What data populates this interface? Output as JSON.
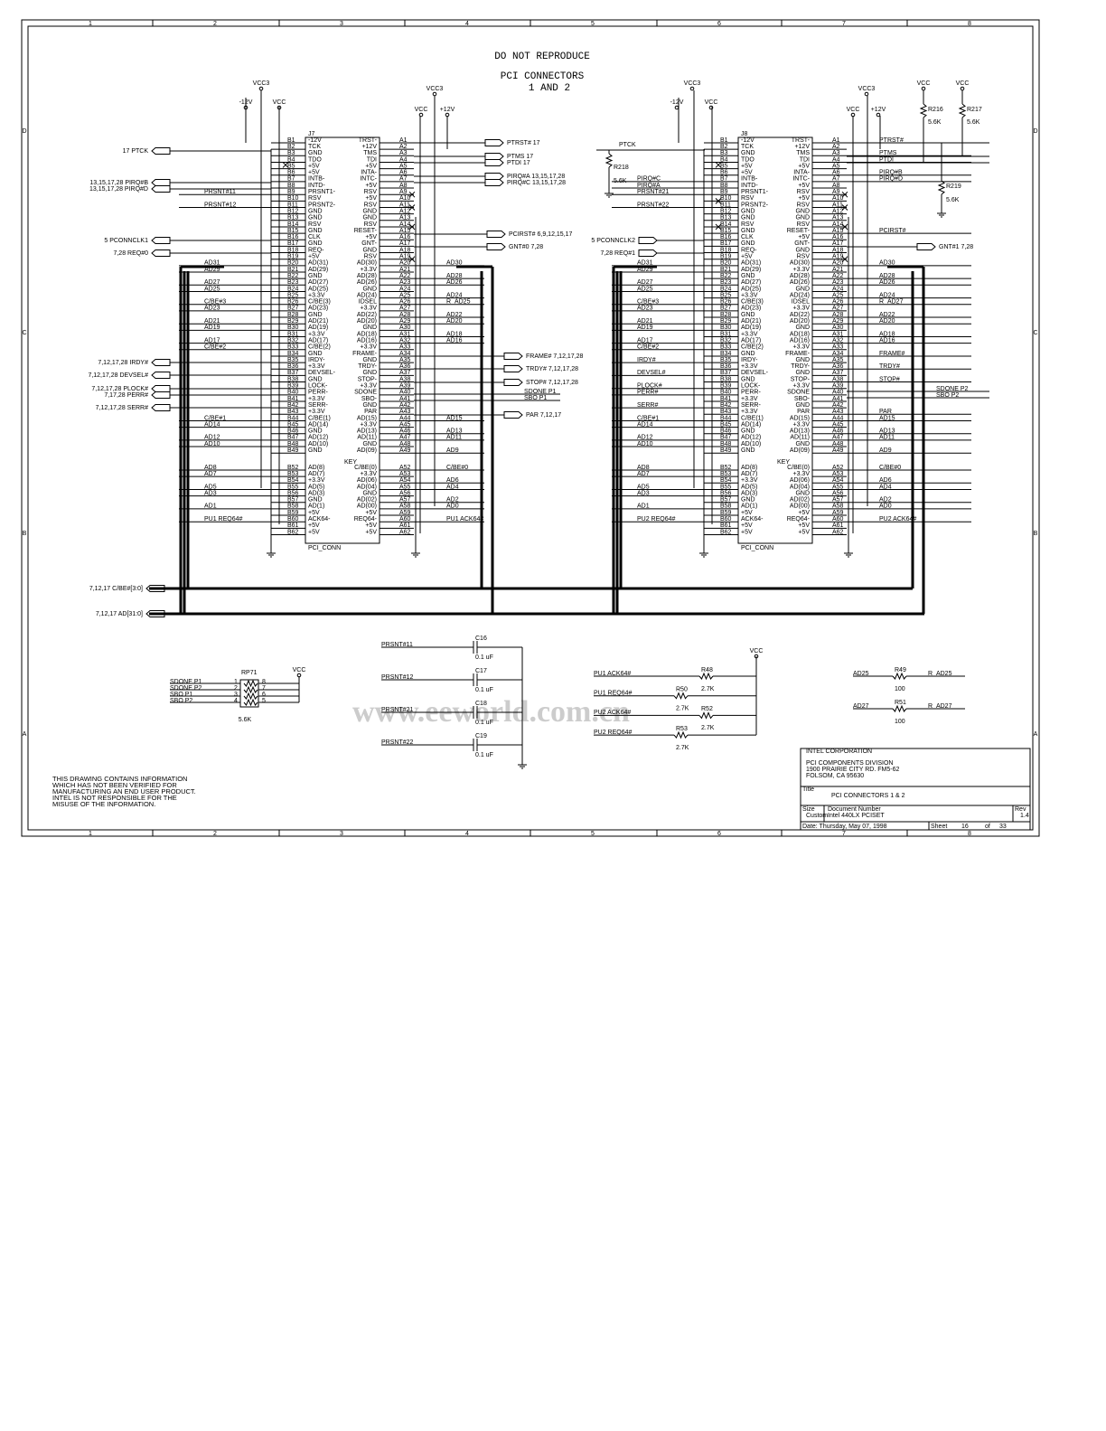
{
  "header": {
    "line1": "DO NOT REPRODUCE",
    "line2": "PCI CONNECTORS",
    "line3": "1 AND 2"
  },
  "border": {
    "columns": [
      "1",
      "2",
      "3",
      "4",
      "5",
      "6",
      "7",
      "8"
    ],
    "rows": [
      "D",
      "C",
      "B",
      "A"
    ]
  },
  "key": "KEY",
  "pin_rows": [
    {
      "b": "B1",
      "bn": "-12V",
      "a": "A1",
      "an": "TRST-"
    },
    {
      "b": "B2",
      "bn": "TCK",
      "a": "A2",
      "an": "+12V"
    },
    {
      "b": "B3",
      "bn": "GND",
      "a": "A3",
      "an": "TMS"
    },
    {
      "b": "B4",
      "bn": "TDO",
      "a": "A4",
      "an": "TDI"
    },
    {
      "b": "B5",
      "bn": "+5V",
      "a": "A5",
      "an": "+5V"
    },
    {
      "b": "B6",
      "bn": "+5V",
      "a": "A6",
      "an": "INTA-"
    },
    {
      "b": "B7",
      "bn": "INTB-",
      "a": "A7",
      "an": "INTC-"
    },
    {
      "b": "B8",
      "bn": "INTD-",
      "a": "A8",
      "an": "+5V"
    },
    {
      "b": "B9",
      "bn": "PRSNT1-",
      "a": "A9",
      "an": "RSV"
    },
    {
      "b": "B10",
      "bn": "RSV",
      "a": "A10",
      "an": "+5V"
    },
    {
      "b": "B11",
      "bn": "PRSNT2-",
      "a": "A11",
      "an": "RSV"
    },
    {
      "b": "B12",
      "bn": "GND",
      "a": "A12",
      "an": "GND"
    },
    {
      "b": "B13",
      "bn": "GND",
      "a": "A13",
      "an": "GND"
    },
    {
      "b": "B14",
      "bn": "RSV",
      "a": "A14",
      "an": "RSV"
    },
    {
      "b": "B15",
      "bn": "GND",
      "a": "A15",
      "an": "RESET-"
    },
    {
      "b": "B16",
      "bn": "CLK",
      "a": "A16",
      "an": "+5V"
    },
    {
      "b": "B17",
      "bn": "GND",
      "a": "A17",
      "an": "GNT-"
    },
    {
      "b": "B18",
      "bn": "REQ-",
      "a": "A18",
      "an": "GND"
    },
    {
      "b": "B19",
      "bn": "+5V",
      "a": "A19",
      "an": "RSV"
    },
    {
      "b": "B20",
      "bn": "AD(31)",
      "a": "A20",
      "an": "AD(30)"
    },
    {
      "b": "B21",
      "bn": "AD(29)",
      "a": "A21",
      "an": "+3.3V"
    },
    {
      "b": "B22",
      "bn": "GND",
      "a": "A22",
      "an": "AD(28)"
    },
    {
      "b": "B23",
      "bn": "AD(27)",
      "a": "A23",
      "an": "AD(26)"
    },
    {
      "b": "B24",
      "bn": "AD(25)",
      "a": "A24",
      "an": "GND"
    },
    {
      "b": "B25",
      "bn": "+3.3V",
      "a": "A25",
      "an": "AD(24)"
    },
    {
      "b": "B26",
      "bn": "C/BE(3)",
      "a": "A26",
      "an": "IDSEL"
    },
    {
      "b": "B27",
      "bn": "AD(23)",
      "a": "A27",
      "an": "+3.3V"
    },
    {
      "b": "B28",
      "bn": "GND",
      "a": "A28",
      "an": "AD(22)"
    },
    {
      "b": "B29",
      "bn": "AD(21)",
      "a": "A29",
      "an": "AD(20)"
    },
    {
      "b": "B30",
      "bn": "AD(19)",
      "a": "A30",
      "an": "GND"
    },
    {
      "b": "B31",
      "bn": "+3.3V",
      "a": "A31",
      "an": "AD(18)"
    },
    {
      "b": "B32",
      "bn": "AD(17)",
      "a": "A32",
      "an": "AD(16)"
    },
    {
      "b": "B33",
      "bn": "C/BE(2)",
      "a": "A33",
      "an": "+3.3V"
    },
    {
      "b": "B34",
      "bn": "GND",
      "a": "A34",
      "an": "FRAME-"
    },
    {
      "b": "B35",
      "bn": "IRDY-",
      "a": "A35",
      "an": "GND"
    },
    {
      "b": "B36",
      "bn": "+3.3V",
      "a": "A36",
      "an": "TRDY-"
    },
    {
      "b": "B37",
      "bn": "DEVSEL-",
      "a": "A37",
      "an": "GND"
    },
    {
      "b": "B38",
      "bn": "GND",
      "a": "A38",
      "an": "STOP-"
    },
    {
      "b": "B39",
      "bn": "LOCK-",
      "a": "A39",
      "an": "+3.3V"
    },
    {
      "b": "B40",
      "bn": "PERR-",
      "a": "A40",
      "an": "SDONE"
    },
    {
      "b": "B41",
      "bn": "+3.3V",
      "a": "A41",
      "an": "SBO-"
    },
    {
      "b": "B42",
      "bn": "SERR-",
      "a": "A42",
      "an": "GND"
    },
    {
      "b": "B43",
      "bn": "+3.3V",
      "a": "A43",
      "an": "PAR"
    },
    {
      "b": "B44",
      "bn": "C/BE(1)",
      "a": "A44",
      "an": "AD(15)"
    },
    {
      "b": "B45",
      "bn": "AD(14)",
      "a": "A45",
      "an": "+3.3V"
    },
    {
      "b": "B46",
      "bn": "GND",
      "a": "A46",
      "an": "AD(13)"
    },
    {
      "b": "B47",
      "bn": "AD(12)",
      "a": "A47",
      "an": "AD(11)"
    },
    {
      "b": "B48",
      "bn": "AD(10)",
      "a": "A48",
      "an": "GND"
    },
    {
      "b": "B49",
      "bn": "GND",
      "a": "A49",
      "an": "AD(09)"
    },
    {
      "b": "B52",
      "bn": "AD(8)",
      "a": "A52",
      "an": "C/BE(0)"
    },
    {
      "b": "B53",
      "bn": "AD(7)",
      "a": "A53",
      "an": "+3.3V"
    },
    {
      "b": "B54",
      "bn": "+3.3V",
      "a": "A54",
      "an": "AD(06)"
    },
    {
      "b": "B55",
      "bn": "AD(5)",
      "a": "A55",
      "an": "AD(04)"
    },
    {
      "b": "B56",
      "bn": "AD(3)",
      "a": "A56",
      "an": "GND"
    },
    {
      "b": "B57",
      "bn": "GND",
      "a": "A57",
      "an": "AD(02)"
    },
    {
      "b": "B58",
      "bn": "AD(1)",
      "a": "A58",
      "an": "AD(00)"
    },
    {
      "b": "B59",
      "bn": "+5V",
      "a": "A59",
      "an": "+5V"
    },
    {
      "b": "B60",
      "bn": "ACK64-",
      "a": "A60",
      "an": "REQ64-"
    },
    {
      "b": "B61",
      "bn": "+5V",
      "a": "A61",
      "an": "+5V"
    },
    {
      "b": "B62",
      "bn": "+5V",
      "a": "A62",
      "an": "+5V"
    }
  ],
  "connectors": [
    {
      "ref": "J7",
      "part": "PCI_CONN",
      "left_nets": {
        "B9": "PRSNT#11",
        "B11": "PRSNT#12",
        "B20": "AD31",
        "B21": "AD29",
        "B23": "AD27",
        "B24": "AD25",
        "B26": "C/BE#3",
        "B27": "AD23",
        "B29": "AD21",
        "B30": "AD19",
        "B32": "AD17",
        "B33": "C/BE#2",
        "B44": "C/BE#1",
        "B45": "AD14",
        "B47": "AD12",
        "B48": "AD10",
        "B52": "AD8",
        "B53": "AD7",
        "B55": "AD5",
        "B56": "AD3",
        "B58": "AD1",
        "B60": "PU1 REQ64#"
      },
      "right_nets": {
        "A20": "AD30",
        "A22": "AD28",
        "A23": "AD26",
        "A25": "AD24",
        "A26": "R_AD25",
        "A28": "AD22",
        "A29": "AD20",
        "A31": "AD18",
        "A32": "AD16",
        "A44": "AD15",
        "A46": "AD13",
        "A47": "AD11",
        "A49": "AD9",
        "A52": "C/BE#0",
        "A54": "AD6",
        "A55": "AD4",
        "A57": "AD2",
        "A58": "AD0",
        "A60": "PU1 ACK64#"
      }
    },
    {
      "ref": "J8",
      "part": "PCI_CONN",
      "left_nets": {
        "B7": "PIRQ#C",
        "B8": "PIRQ#A",
        "B9": "PRSNT#21",
        "B11": "PRSNT#22",
        "B20": "AD31",
        "B21": "AD29",
        "B23": "AD27",
        "B24": "AD25",
        "B26": "C/BE#3",
        "B27": "AD23",
        "B29": "AD21",
        "B30": "AD19",
        "B32": "AD17",
        "B33": "C/BE#2",
        "B35": "IRDY#",
        "B37": "DEVSEL#",
        "B39": "PLOCK#",
        "B40": "PERR#",
        "B42": "SERR#",
        "B44": "C/BE#1",
        "B45": "AD14",
        "B47": "AD12",
        "B48": "AD10",
        "B52": "AD8",
        "B53": "AD7",
        "B55": "AD5",
        "B56": "AD3",
        "B58": "AD1",
        "B60": "PU2 REQ64#"
      },
      "right_nets": {
        "A1": "PTRST#",
        "A3": "PTMS",
        "A4": "PTDI",
        "A6": "PIRQ#B",
        "A7": "PIRQ#D",
        "A15": "PCIRST#",
        "A20": "AD30",
        "A22": "AD28",
        "A23": "AD26",
        "A25": "AD24",
        "A26": "R_AD27",
        "A28": "AD22",
        "A29": "AD20",
        "A31": "AD18",
        "A32": "AD16",
        "A34": "FRAME#",
        "A36": "TRDY#",
        "A38": "STOP#",
        "A43": "PAR",
        "A44": "AD15",
        "A46": "AD13",
        "A47": "AD11",
        "A49": "AD9",
        "A52": "C/BE#0",
        "A54": "AD6",
        "A55": "AD4",
        "A57": "AD2",
        "A58": "AD0",
        "A60": "PU2 ACK64#"
      }
    }
  ],
  "ports_left": [
    "17  PTCK",
    "13,15,17,28  PIRQ#B",
    "13,15,17,28  PIRQ#D",
    "5  PCONNCLK1",
    "7,28  REQ#0",
    "7,12,17,28  IRDY#",
    "7,12,17,28  DEVSEL#",
    "7,12,17,28  PLOCK#",
    "7,17,28  PERR#",
    "7,12,17,28  SERR#",
    "7,12,17  C/BE#[3:0]",
    "7,12,17  AD[31:0]",
    "5  PCONNCLK2",
    "7,28  REQ#1"
  ],
  "ports_right": [
    "PTRST#  17",
    "PTMS  17",
    "PTDI  17",
    "PIRQ#A  13,15,17,28",
    "PIRQ#C  13,15,17,28",
    "PCIRST#  6,9,12,15,17",
    "GNT#0  7,28",
    "FRAME#  7,12,17,28",
    "TRDY#  7,12,17,28",
    "STOP#  7,12,17,28",
    "PAR  7,12,17",
    "GNT#1  7,28"
  ],
  "net_labels": [
    "SDONE P1",
    "SBO P1",
    "PTCK",
    "SDONE P2",
    "SBO P2"
  ],
  "power_labels": [
    "VCC3",
    "-12V",
    "VCC",
    "VCC3",
    "VCC",
    "+12V",
    "VCC3",
    "-12V",
    "VCC",
    "VCC3",
    "VCC",
    "+12V",
    "VCC",
    "VCC",
    "VCC",
    "VCC"
  ],
  "resistors": [
    {
      "ref": "R218",
      "value": "5.6K"
    },
    {
      "ref": "R216",
      "value": "5.6K"
    },
    {
      "ref": "R217",
      "value": "5.6K"
    },
    {
      "ref": "R219",
      "value": "5.6K"
    }
  ],
  "rpack": {
    "ref": "RP71",
    "value": "5.6K",
    "nets": [
      "SDONE P1",
      "SDONE P2",
      "SBO P1",
      "SBO P2"
    ],
    "pins_left": [
      "1",
      "2",
      "3",
      "4"
    ],
    "pins_right": [
      "8",
      "7",
      "6",
      "5"
    ]
  },
  "caps": [
    {
      "ref": "C16",
      "value": "0.1 uF",
      "net": "PRSNT#11"
    },
    {
      "ref": "C17",
      "value": "0.1 uF",
      "net": "PRSNT#12"
    },
    {
      "ref": "C18",
      "value": "0.1 uF",
      "net": "PRSNT#21"
    },
    {
      "ref": "C19",
      "value": "0.1 uF",
      "net": "PRSNT#22"
    }
  ],
  "pullups": [
    {
      "net": "PU1 ACK64#",
      "ref": "R48",
      "value": "2.7K"
    },
    {
      "net": "PU1 REQ64#",
      "ref": "R50",
      "value": "2.7K"
    },
    {
      "net": "PU2 ACK64#",
      "ref": "R52",
      "value": "2.7K"
    },
    {
      "net": "PU2 REQ64#",
      "ref": "R53",
      "value": "2.7K"
    }
  ],
  "series": [
    {
      "in": "AD25",
      "ref": "R49",
      "value": "100",
      "out": "R_AD25"
    },
    {
      "in": "AD27",
      "ref": "R51",
      "value": "100",
      "out": "R_AD27"
    }
  ],
  "note": [
    "THIS DRAWING CONTAINS INFORMATION",
    "WHICH HAS NOT BEEN VERIFIED FOR",
    "MANUFACTURING AN END USER PRODUCT.",
    "INTEL IS NOT RESPONSIBLE FOR THE",
    "MISUSE OF THE INFORMATION."
  ],
  "watermark": "www.eeworld.com.cn",
  "title_block": {
    "company": "INTEL CORPORATION",
    "division": "PCI COMPONENTS DIVISION",
    "address1": "1900 PRAIRIE CITY RD. FM5-62",
    "address2": "FOLSOM, CA 95630",
    "title_label": "Title",
    "title": "PCI CONNECTORS 1 & 2",
    "size_label": "Size",
    "size": "Custom",
    "doc_label": "Document Number",
    "doc": "Intel 440LX PCISET",
    "rev_label": "Rev",
    "rev": "1.4",
    "date": "Date: Thursday, May 07, 1998",
    "sheet_label": "Sheet",
    "sheet": "16",
    "of_label": "of",
    "sheets": "33"
  }
}
